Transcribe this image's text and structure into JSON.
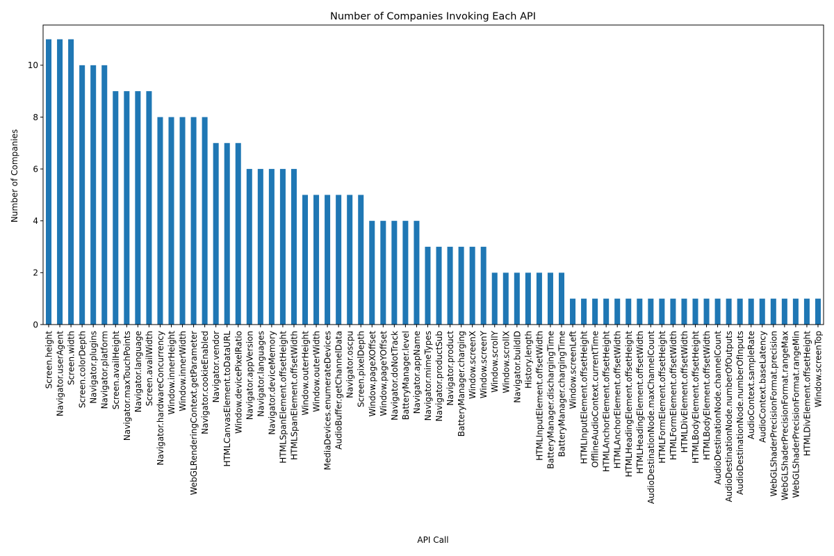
{
  "chart_data": {
    "type": "bar",
    "title": "Number of Companies Invoking Each API",
    "xlabel": "API Call",
    "ylabel": "Number of Companies",
    "ylim": [
      0,
      11.55
    ],
    "yticks": [
      0,
      2,
      4,
      6,
      8,
      10
    ],
    "bar_color": "#1f77b4",
    "grid": false,
    "categories": [
      "Screen.height",
      "Navigator.userAgent",
      "Screen.width",
      "Screen.colorDepth",
      "Navigator.plugins",
      "Navigator.platform",
      "Screen.availHeight",
      "Navigator.maxTouchPoints",
      "Navigator.language",
      "Screen.availWidth",
      "Navigator.hardwareConcurrency",
      "Window.innerHeight",
      "Window.innerWidth",
      "WebGLRenderingContext.getParameter",
      "Navigator.cookieEnabled",
      "Navigator.vendor",
      "HTMLCanvasElement.toDataURL",
      "Window.devicePixelRatio",
      "Navigator.appVersion",
      "Navigator.languages",
      "Navigator.deviceMemory",
      "HTMLSpanElement.offsetHeight",
      "HTMLSpanElement.offsetWidth",
      "Window.outerHeight",
      "Window.outerWidth",
      "MediaDevices.enumerateDevices",
      "AudioBuffer.getChannelData",
      "Navigator.oscpu",
      "Screen.pixelDepth",
      "Window.pageXOffset",
      "Window.pageYOffset",
      "Navigator.doNotTrack",
      "BatteryManager.level",
      "Navigator.appName",
      "Navigator.mimeTypes",
      "Navigator.productSub",
      "Navigator.product",
      "BatteryManager.charging",
      "Window.screenX",
      "Window.screenY",
      "Window.scrollY",
      "Window.scrollX",
      "Navigator.buildID",
      "History.length",
      "HTMLInputElement.offsetWidth",
      "BatteryManager.dischargingTime",
      "BatteryManager.chargingTime",
      "Window.screenLeft",
      "HTMLInputElement.offsetHeight",
      "OfflineAudioContext.currentTime",
      "HTMLAnchorElement.offsetHeight",
      "HTMLAnchorElement.offsetWidth",
      "HTMLHeadingElement.offsetHeight",
      "HTMLHeadingElement.offsetWidth",
      "AudioDestinationNode.maxChannelCount",
      "HTMLFormElement.offsetHeight",
      "HTMLFormElement.offsetWidth",
      "HTMLDivElement.offsetWidth",
      "HTMLBodyElement.offsetHeight",
      "HTMLBodyElement.offsetWidth",
      "AudioDestinationNode.channelCount",
      "AudioDestinationNode.numberOfOutputs",
      "AudioDestinationNode.numberOfInputs",
      "AudioContext.sampleRate",
      "AudioContext.baseLatency",
      "WebGLShaderPrecisionFormat.precision",
      "WebGLShaderPrecisionFormat.rangeMax",
      "WebGLShaderPrecisionFormat.rangeMin",
      "HTMLDivElement.offsetHeight",
      "Window.screenTop"
    ],
    "values": [
      11,
      11,
      11,
      10,
      10,
      10,
      9,
      9,
      9,
      9,
      8,
      8,
      8,
      8,
      8,
      7,
      7,
      7,
      6,
      6,
      6,
      6,
      6,
      5,
      5,
      5,
      5,
      5,
      5,
      4,
      4,
      4,
      4,
      4,
      3,
      3,
      3,
      3,
      3,
      3,
      2,
      2,
      2,
      2,
      2,
      2,
      2,
      1,
      1,
      1,
      1,
      1,
      1,
      1,
      1,
      1,
      1,
      1,
      1,
      1,
      1,
      1,
      1,
      1,
      1,
      1,
      1,
      1,
      1,
      1
    ]
  }
}
